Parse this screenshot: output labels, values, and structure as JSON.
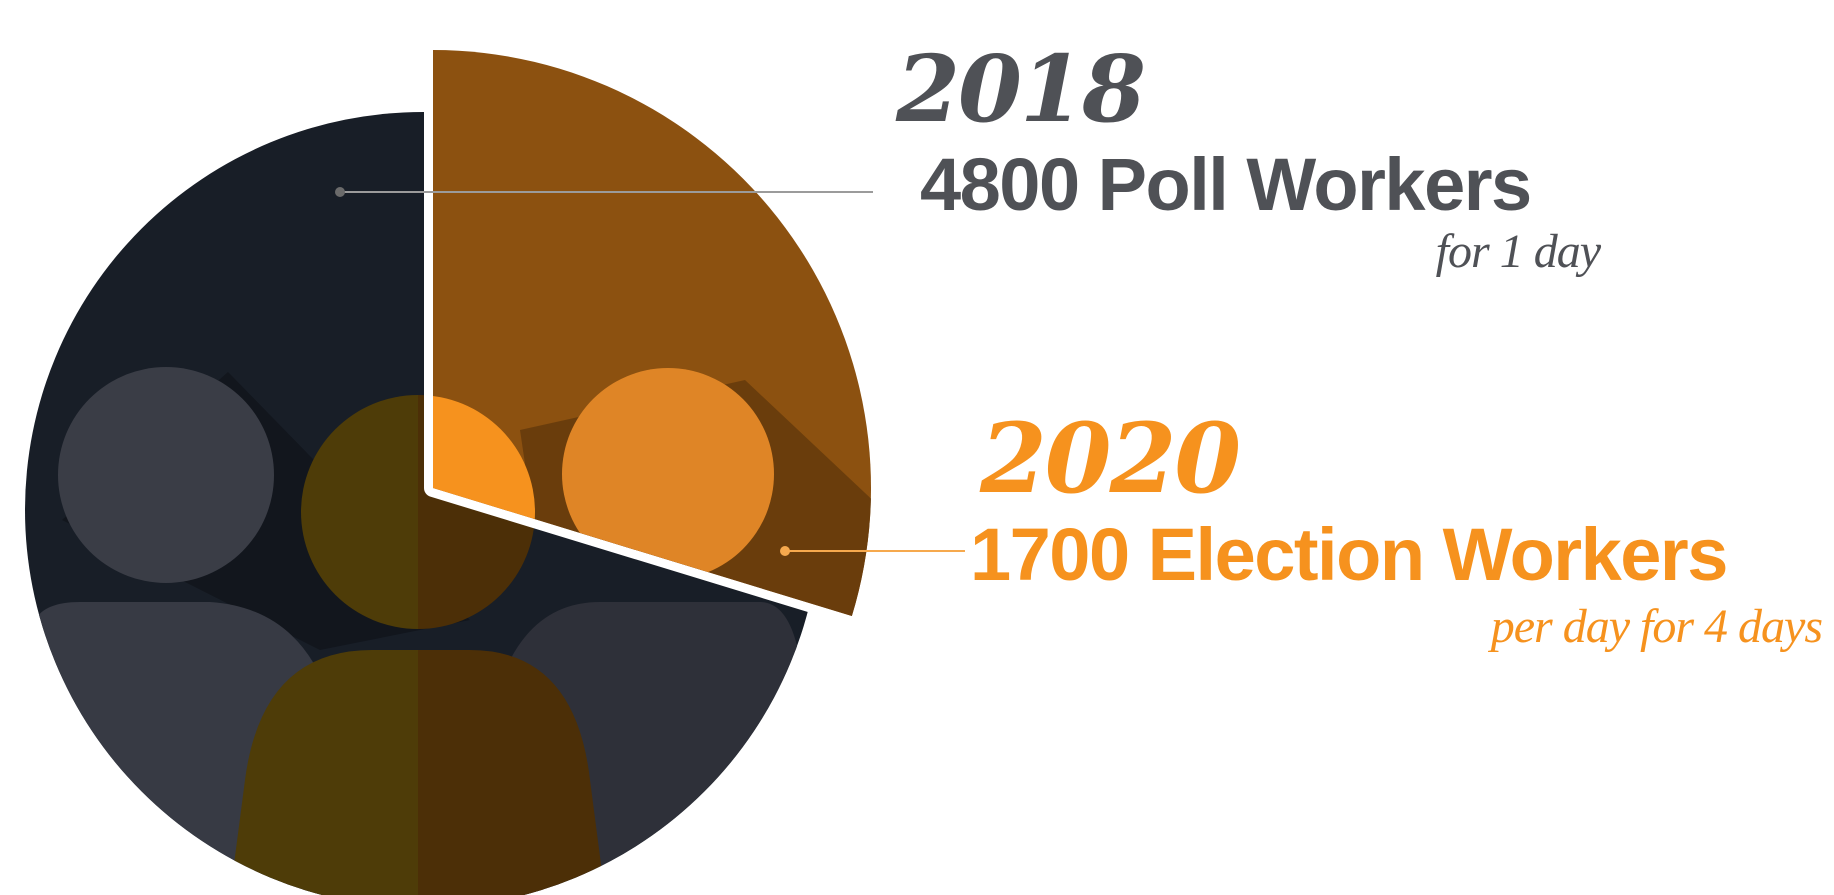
{
  "chart_data": {
    "type": "pie",
    "categories": [
      "2018",
      "2020"
    ],
    "values": [
      4800,
      1700
    ],
    "entries": [
      {
        "year": "2018",
        "headline": "4800 Poll Workers",
        "subline": "for 1 day",
        "value": 4800,
        "color": "#4f5156"
      },
      {
        "year": "2020",
        "headline": "1700 Election Workers",
        "subline": "per day for 4 days",
        "value": 1700,
        "color": "#f6921e"
      }
    ]
  },
  "colors": {
    "pie_background": "#181e27",
    "highlight_wedge": "#8c5110",
    "wedge_shadow": "#6a3d0c",
    "person_head": "#3a3d46",
    "person_body": "#373a44",
    "person_right_body": "#2e3039",
    "center_person_left": "#4e3c08",
    "center_person_right": "#4c2f07",
    "center_head_highlight": "#f6921e",
    "right_head": "#df8526",
    "leader_2018": "#9b9b9b",
    "leader_2020": "#f6a94e"
  },
  "icons": {
    "pictogram": "people-group-icon"
  }
}
